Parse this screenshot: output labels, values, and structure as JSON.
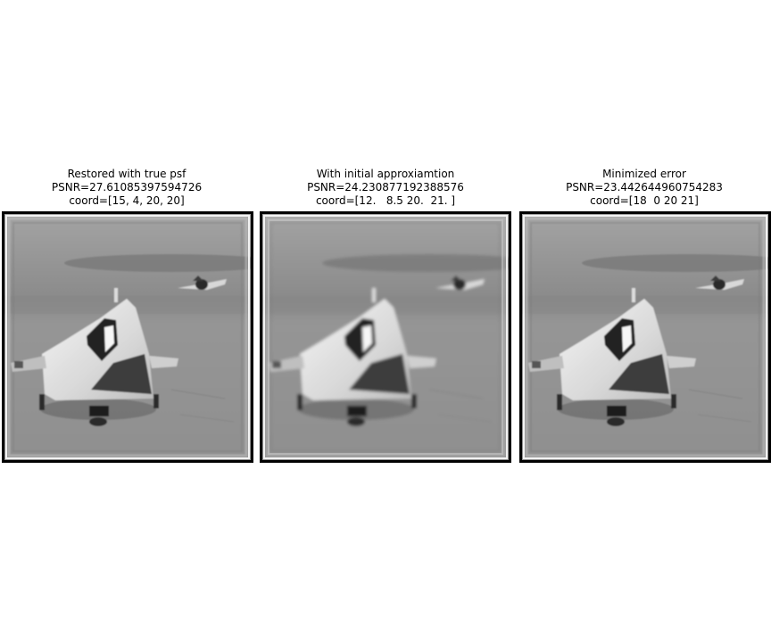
{
  "figure": {
    "panels": [
      {
        "title_line1": "Restored with true psf",
        "title_line2": "PSNR=27.61085397594726",
        "title_line3": "coord=[15, 4, 20, 20]",
        "image_description_icon": "restored-image"
      },
      {
        "title_line1": "With initial approxiamtion",
        "title_line2": "PSNR=24.230877192388576",
        "title_line3": "coord=[12.   8.5 20.  21. ]",
        "image_description_icon": "initial-approx-image"
      },
      {
        "title_line1": "Minimized error",
        "title_line2": "PSNR=23.442644960754283",
        "title_line3": "coord=[18  0 20 21]",
        "image_description_icon": "minimized-error-image"
      }
    ],
    "colors": {
      "background": "#ffffff",
      "frame": "#000000",
      "sky": "#9a9a9a",
      "ground": "#8e8e8e",
      "plane_light": "#ececec",
      "plane_dark": "#3a3a3a"
    }
  }
}
